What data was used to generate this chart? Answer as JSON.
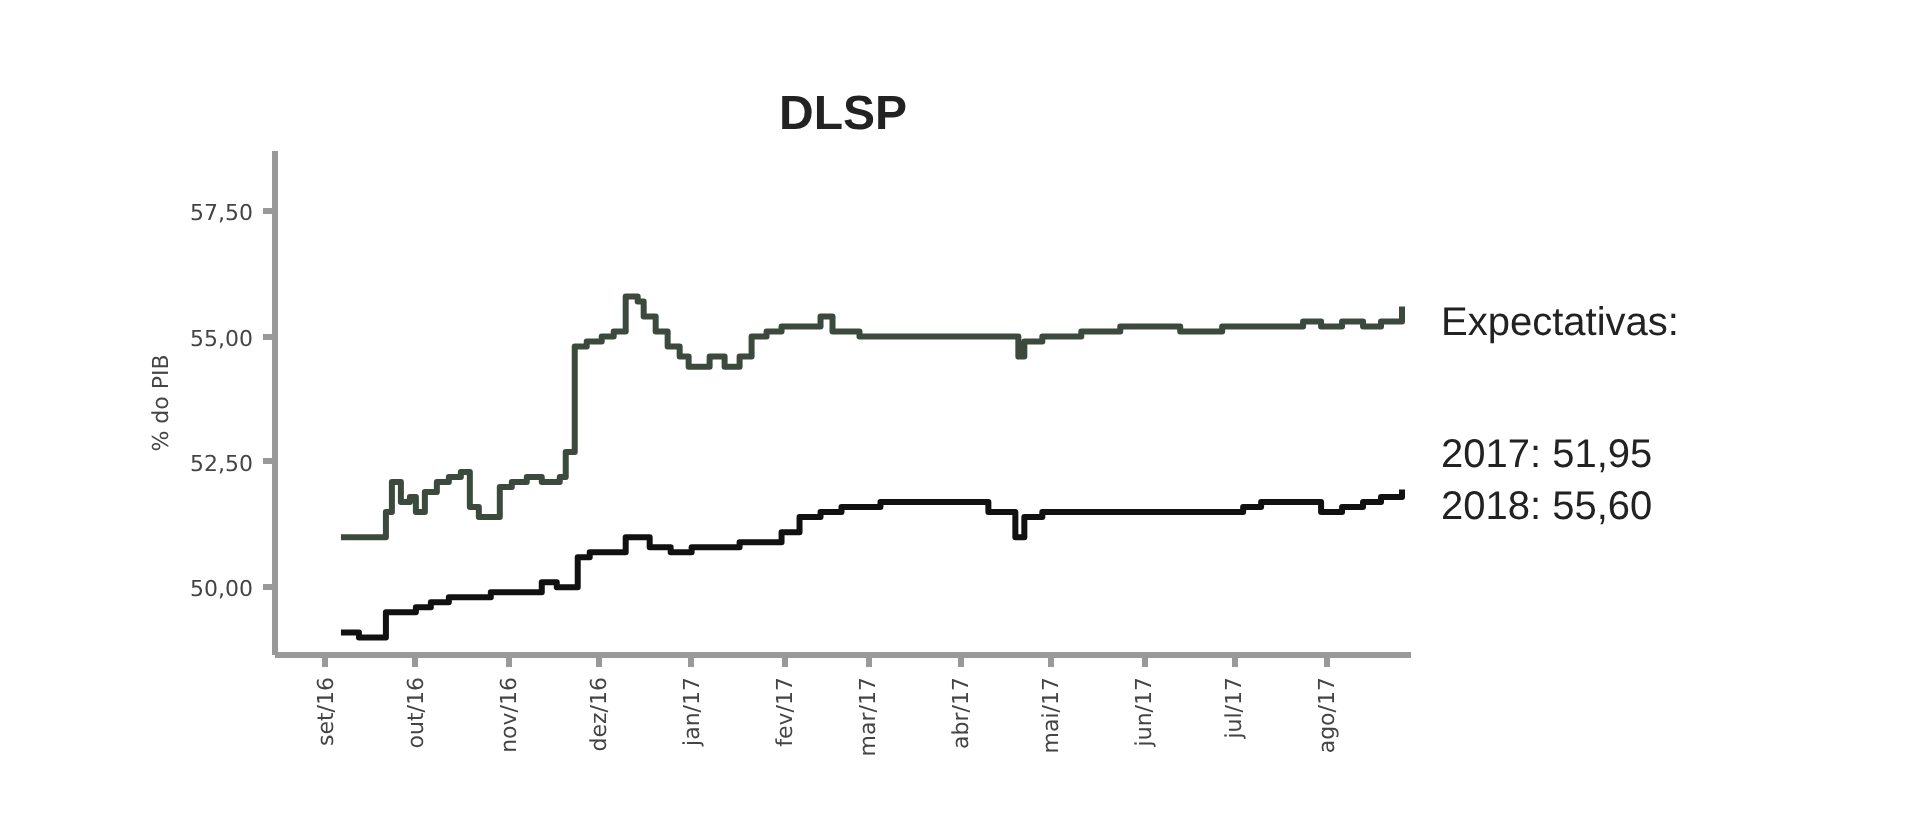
{
  "chart_data": {
    "type": "step",
    "title": "DLSP",
    "ylabel": "% do PIB",
    "xlim": [
      "2016-08-15",
      "2017-08-29"
    ],
    "ylim": [
      48.65,
      58.7
    ],
    "xticks": [
      {
        "value": "2016-09-01",
        "label": "set/16"
      },
      {
        "value": "2016-10-01",
        "label": "out/16"
      },
      {
        "value": "2016-11-01",
        "label": "nov/16"
      },
      {
        "value": "2016-12-01",
        "label": "dez/16"
      },
      {
        "value": "2017-01-01",
        "label": "jan/17"
      },
      {
        "value": "2017-02-01",
        "label": "fev/17"
      },
      {
        "value": "2017-03-01",
        "label": "mar/17"
      },
      {
        "value": "2017-04-01",
        "label": "abr/17"
      },
      {
        "value": "2017-05-01",
        "label": "mai/17"
      },
      {
        "value": "2017-06-01",
        "label": "jun/17"
      },
      {
        "value": "2017-07-01",
        "label": "jul/17"
      },
      {
        "value": "2017-08-01",
        "label": "ago/17"
      }
    ],
    "yticks": [
      {
        "value": 50,
        "label": "50,00"
      },
      {
        "value": 52.5,
        "label": "52,50"
      },
      {
        "value": 55,
        "label": "55,00"
      },
      {
        "value": 57.5,
        "label": "57,50"
      }
    ],
    "grid": false,
    "annotations": [
      "Expectativas:",
      "2017: 51,95",
      "2018: 55,60"
    ],
    "series": [
      {
        "color": "#3c4a3e",
        "x": [
          "2016-09-06",
          "2016-09-19",
          "2016-09-21",
          "2016-09-23",
          "2016-09-26",
          "2016-09-29",
          "2016-10-01",
          "2016-10-04",
          "2016-10-08",
          "2016-10-12",
          "2016-10-16",
          "2016-10-19",
          "2016-10-22",
          "2016-10-26",
          "2016-10-29",
          "2016-11-02",
          "2016-11-07",
          "2016-11-12",
          "2016-11-18",
          "2016-11-20",
          "2016-11-23",
          "2016-11-27",
          "2016-12-02",
          "2016-12-06",
          "2016-12-10",
          "2016-12-14",
          "2016-12-16",
          "2016-12-20",
          "2016-12-24",
          "2016-12-28",
          "2016-12-31",
          "2017-01-04",
          "2017-01-07",
          "2017-01-12",
          "2017-01-17",
          "2017-01-21",
          "2017-01-26",
          "2017-01-31",
          "2017-02-06",
          "2017-02-13",
          "2017-02-17",
          "2017-02-23",
          "2017-02-26",
          "2017-03-05",
          "2017-03-19",
          "2017-04-01",
          "2017-04-18",
          "2017-04-20",
          "2017-04-22",
          "2017-04-28",
          "2017-05-04",
          "2017-05-11",
          "2017-05-24",
          "2017-06-07",
          "2017-06-13",
          "2017-06-27",
          "2017-07-07",
          "2017-07-24",
          "2017-07-30",
          "2017-08-06",
          "2017-08-13",
          "2017-08-19",
          "2017-08-26"
        ],
        "values": [
          51.0,
          51.0,
          51.5,
          52.1,
          51.7,
          51.8,
          51.5,
          51.9,
          52.1,
          52.2,
          52.3,
          51.6,
          51.4,
          51.4,
          52.0,
          52.1,
          52.2,
          52.1,
          52.2,
          52.7,
          54.8,
          54.9,
          55.0,
          55.1,
          55.8,
          55.7,
          55.4,
          55.1,
          54.8,
          54.6,
          54.4,
          54.4,
          54.6,
          54.4,
          54.6,
          55.0,
          55.1,
          55.2,
          55.2,
          55.4,
          55.1,
          55.1,
          55.0,
          55.0,
          55.0,
          55.0,
          55.0,
          54.6,
          54.9,
          55.0,
          55.0,
          55.1,
          55.2,
          55.2,
          55.1,
          55.2,
          55.2,
          55.3,
          55.2,
          55.3,
          55.2,
          55.3,
          55.6
        ]
      },
      {
        "color": "#111111",
        "x": [
          "2016-09-06",
          "2016-09-12",
          "2016-09-19",
          "2016-09-21",
          "2016-09-26",
          "2016-10-01",
          "2016-10-06",
          "2016-10-12",
          "2016-10-19",
          "2016-10-26",
          "2016-11-01",
          "2016-11-06",
          "2016-11-12",
          "2016-11-17",
          "2016-11-22",
          "2016-11-24",
          "2016-11-28",
          "2016-12-05",
          "2016-12-10",
          "2016-12-14",
          "2016-12-18",
          "2016-12-25",
          "2017-01-01",
          "2017-01-11",
          "2017-01-17",
          "2017-01-24",
          "2017-01-31",
          "2017-02-06",
          "2017-02-13",
          "2017-02-20",
          "2017-02-26",
          "2017-03-05",
          "2017-03-12",
          "2017-04-08",
          "2017-04-10",
          "2017-04-19",
          "2017-04-22",
          "2017-04-28",
          "2017-05-11",
          "2017-05-24",
          "2017-06-07",
          "2017-06-20",
          "2017-07-04",
          "2017-07-10",
          "2017-07-24",
          "2017-07-30",
          "2017-08-06",
          "2017-08-13",
          "2017-08-19",
          "2017-08-26"
        ],
        "values": [
          49.1,
          49.0,
          49.0,
          49.5,
          49.5,
          49.6,
          49.7,
          49.8,
          49.8,
          49.9,
          49.9,
          49.9,
          50.1,
          50.0,
          50.0,
          50.6,
          50.7,
          50.7,
          51.0,
          51.0,
          50.8,
          50.7,
          50.8,
          50.8,
          50.9,
          50.9,
          51.1,
          51.4,
          51.5,
          51.6,
          51.6,
          51.7,
          51.7,
          51.7,
          51.5,
          51.0,
          51.4,
          51.5,
          51.5,
          51.5,
          51.5,
          51.5,
          51.6,
          51.7,
          51.7,
          51.5,
          51.6,
          51.7,
          51.8,
          51.95
        ]
      }
    ]
  }
}
